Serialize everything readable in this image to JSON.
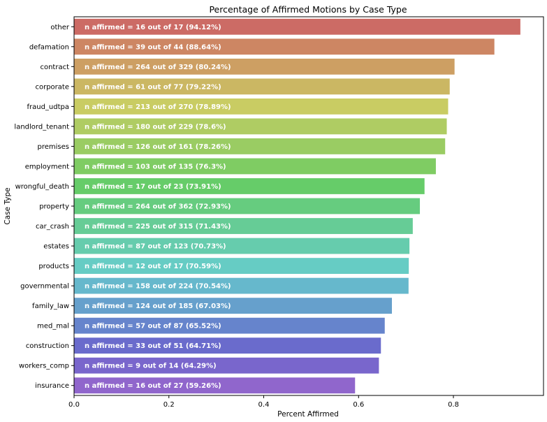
{
  "chart_data": {
    "type": "bar",
    "orientation": "horizontal",
    "title": "Percentage of Affirmed Motions by Case Type",
    "xlabel": "Percent Affirmed",
    "ylabel": "Case Type",
    "xlim": [
      0,
      0.99
    ],
    "xticks": [
      "0.0",
      "0.2",
      "0.4",
      "0.6",
      "0.8"
    ],
    "grid": false,
    "categories": [
      "other",
      "defamation",
      "contract",
      "corporate",
      "fraud_udtpa",
      "landlord_tenant",
      "premises",
      "employment",
      "wrongful_death",
      "property",
      "car_crash",
      "estates",
      "products",
      "governmental",
      "family_law",
      "med_mal",
      "construction",
      "workers_comp",
      "insurance"
    ],
    "values": [
      0.9412,
      0.8864,
      0.8024,
      0.7922,
      0.7889,
      0.786,
      0.7826,
      0.763,
      0.7391,
      0.7293,
      0.7143,
      0.7073,
      0.7059,
      0.7054,
      0.6703,
      0.6552,
      0.6471,
      0.6429,
      0.5926
    ],
    "data_labels": [
      "n affirmed = 16 out of 17 (94.12%)",
      "n affirmed = 39 out of 44 (88.64%)",
      "n affirmed = 264 out of 329 (80.24%)",
      "n affirmed = 61 out of 77 (79.22%)",
      "n affirmed = 213 out of 270 (78.89%)",
      "n affirmed = 180 out of 229 (78.6%)",
      "n affirmed = 126 out of 161 (78.26%)",
      "n affirmed = 103 out of 135 (76.3%)",
      "n affirmed = 17 out of 23 (73.91%)",
      "n affirmed = 264 out of 362 (72.93%)",
      "n affirmed = 225 out of 315 (71.43%)",
      "n affirmed = 87 out of 123 (70.73%)",
      "n affirmed = 12 out of 17 (70.59%)",
      "n affirmed = 158 out of 224 (70.54%)",
      "n affirmed = 124 out of 185 (67.03%)",
      "n affirmed = 57 out of 87 (65.52%)",
      "n affirmed = 33 out of 51 (64.71%)",
      "n affirmed = 9 out of 14 (64.29%)",
      "n affirmed = 16 out of 27 (59.26%)"
    ],
    "colors": [
      "#cc6b65",
      "#cd8663",
      "#cd9f63",
      "#cbb763",
      "#c9cc63",
      "#afcc63",
      "#9acc63",
      "#7fcc63",
      "#66cc69",
      "#66cc7f",
      "#66cc96",
      "#66ccad",
      "#66ccc4",
      "#66b8cc",
      "#66a0cc",
      "#6684cc",
      "#6a6bcc",
      "#7966cc",
      "#9066cc"
    ]
  }
}
